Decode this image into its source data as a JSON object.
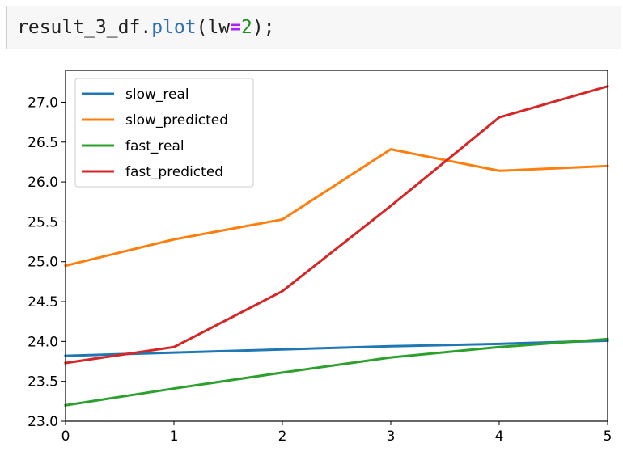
{
  "code_cell": {
    "var": "result_3_df",
    "dot": ".",
    "method": "plot",
    "open": "(",
    "param": "lw",
    "eq": "=",
    "num": "2",
    "close": ");"
  },
  "chart_data": {
    "type": "line",
    "x": [
      0,
      1,
      2,
      3,
      4,
      5
    ],
    "xlim": [
      0,
      5
    ],
    "ylim": [
      23.0,
      27.4
    ],
    "x_ticks": [
      "0",
      "1",
      "2",
      "3",
      "4",
      "5"
    ],
    "y_ticks": [
      "23.0",
      "23.5",
      "24.0",
      "24.5",
      "25.0",
      "25.5",
      "26.0",
      "26.5",
      "27.0"
    ],
    "legend_position": "top-left",
    "grid": false,
    "series": [
      {
        "name": "slow_real",
        "color": "#1f77b4",
        "values": [
          23.82,
          23.86,
          23.9,
          23.94,
          23.97,
          24.01
        ]
      },
      {
        "name": "slow_predicted",
        "color": "#ff7f0e",
        "values": [
          24.95,
          25.28,
          25.53,
          26.41,
          26.14,
          26.2
        ]
      },
      {
        "name": "fast_real",
        "color": "#2ca02c",
        "values": [
          23.2,
          23.41,
          23.61,
          23.8,
          23.93,
          24.03
        ]
      },
      {
        "name": "fast_predicted",
        "color": "#d62728",
        "values": [
          23.73,
          23.93,
          24.63,
          25.7,
          26.81,
          27.2
        ]
      }
    ]
  }
}
